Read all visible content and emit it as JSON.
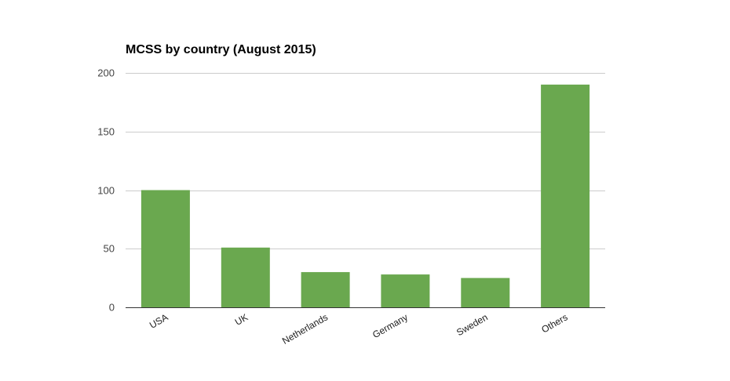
{
  "chart_data": {
    "type": "bar",
    "title": "MCSS by country (August 2015)",
    "xlabel": "",
    "ylabel": "",
    "categories": [
      "USA",
      "UK",
      "Netherlands",
      "Germany",
      "Sweden",
      "Others"
    ],
    "values": [
      100,
      51,
      30,
      28,
      25,
      190
    ],
    "ylim": [
      0,
      200
    ],
    "yticks": [
      "200",
      "150",
      "100",
      "50",
      "0"
    ],
    "grid": true,
    "legend": "none",
    "bar_color": "#6aa84f"
  }
}
